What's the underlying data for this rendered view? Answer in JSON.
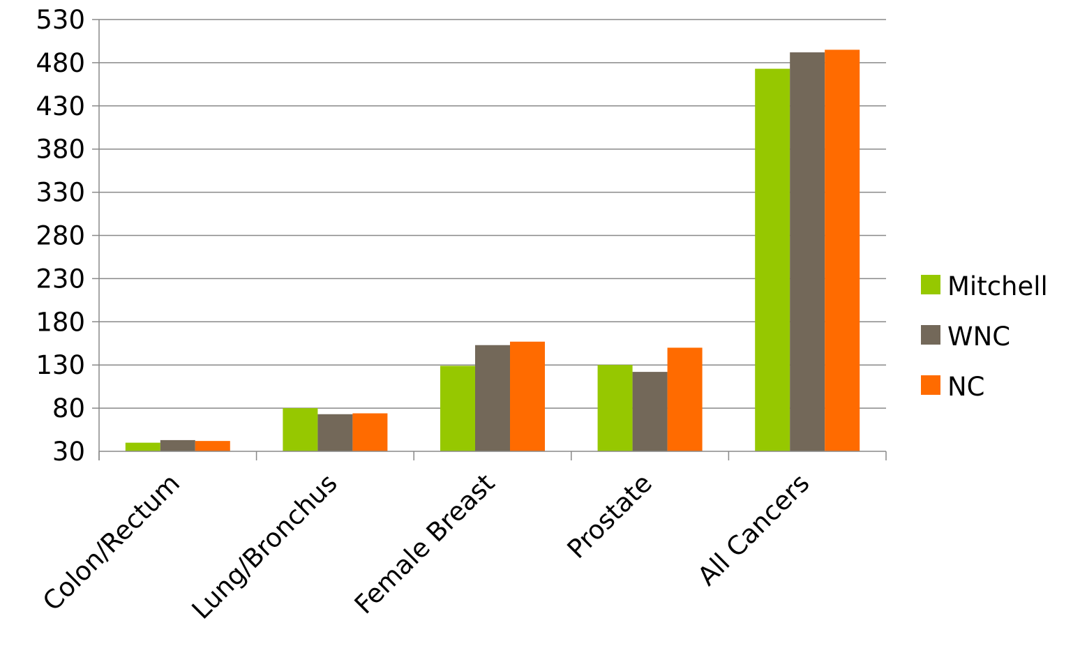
{
  "chart_data": {
    "type": "bar",
    "categories": [
      "Colon/Rectum",
      "Lung/Bronchus",
      "Female Breast",
      "Prostate",
      "All Cancers"
    ],
    "series": [
      {
        "name": "Mitchell",
        "color": "#96c800",
        "values": [
          40,
          80,
          129,
          130,
          473
        ]
      },
      {
        "name": "WNC",
        "color": "#736859",
        "values": [
          43,
          73,
          153,
          122,
          492
        ]
      },
      {
        "name": "NC",
        "color": "#ff6b00",
        "values": [
          42,
          74,
          157,
          150,
          495
        ]
      }
    ],
    "yticks": [
      "30",
      "80",
      "130",
      "180",
      "230",
      "280",
      "330",
      "380",
      "430",
      "480",
      "530"
    ],
    "ylim": [
      30,
      530
    ],
    "grid": true,
    "gridline_color": "#888888",
    "legend_position": "right"
  }
}
